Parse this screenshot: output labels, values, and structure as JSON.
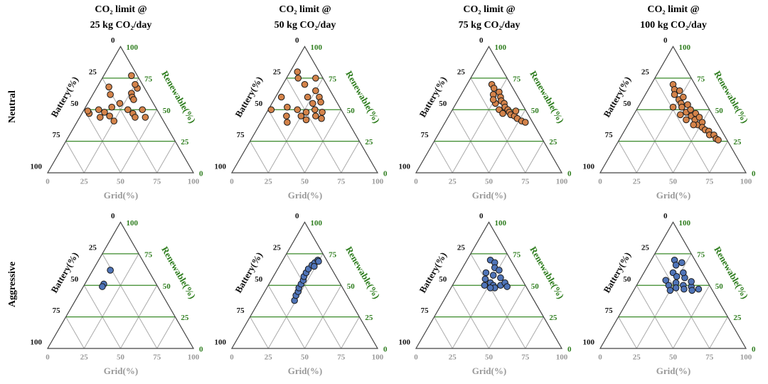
{
  "row_labels": [
    "Neutral",
    "Aggressive"
  ],
  "chart_data": [
    {
      "type": "ternary",
      "title": [
        "CO₂ limit @",
        "25 kg CO₂/day"
      ],
      "color": "#d4834a",
      "grid_label": "Grid(%)",
      "battery_label": "Battery(%)",
      "renewable_label": "Renewable(%)",
      "grid_ticks": [
        0,
        25,
        50,
        75,
        100
      ],
      "battery_ticks": [
        0,
        25,
        50,
        75,
        100
      ],
      "renewable_ticks": [
        0,
        25,
        50,
        75,
        100
      ],
      "points": {
        "grid": [
          5,
          19,
          26,
          45,
          25,
          10,
          15,
          20,
          30,
          35,
          22,
          28,
          28,
          8,
          12,
          18,
          38,
          40,
          25,
          30,
          3,
          14
        ],
        "battery": [
          48,
          4,
          11,
          11,
          34,
          40,
          37,
          35,
          20,
          18,
          23,
          12,
          5,
          24,
          26,
          30,
          18,
          10,
          5,
          12,
          48,
          42
        ],
        "renewable": [
          47,
          77,
          63,
          44,
          41,
          50,
          48,
          45,
          50,
          47,
          55,
          60,
          67,
          68,
          62,
          52,
          44,
          50,
          70,
          58,
          49,
          44
        ]
      }
    },
    {
      "type": "ternary",
      "title": [
        "CO₂ limit @",
        "50 kg CO₂/day"
      ],
      "color": "#d4834a",
      "grid_label": "Grid(%)",
      "battery_label": "Battery(%)",
      "renewable_label": "Renewable(%)",
      "grid_ticks": [
        0,
        25,
        50,
        75,
        100
      ],
      "battery_ticks": [
        0,
        25,
        50,
        75,
        100
      ],
      "renewable_ticks": [
        0,
        25,
        50,
        75,
        100
      ],
      "points": {
        "grid": [
          5,
          8,
          4,
          2,
          15,
          20,
          25,
          30,
          35,
          40,
          22,
          28,
          32,
          18,
          25,
          30,
          12,
          38,
          20,
          27,
          33,
          15
        ],
        "battery": [
          15,
          17,
          36,
          48,
          15,
          30,
          30,
          28,
          20,
          17,
          18,
          17,
          18,
          42,
          10,
          10,
          36,
          14,
          5,
          25,
          11,
          40
        ],
        "renewable": [
          80,
          75,
          60,
          50,
          70,
          50,
          45,
          42,
          45,
          43,
          60,
          55,
          50,
          40,
          65,
          60,
          52,
          48,
          75,
          48,
          56,
          45
        ]
      }
    },
    {
      "type": "ternary",
      "title": [
        "CO₂ limit @",
        "75 kg CO₂/day"
      ],
      "color": "#d4834a",
      "grid_label": "Grid(%)",
      "battery_label": "Battery(%)",
      "renewable_label": "Renewable(%)",
      "grid_ticks": [
        0,
        25,
        50,
        75,
        100
      ],
      "battery_ticks": [
        0,
        25,
        50,
        75,
        100
      ],
      "renewable_ticks": [
        0,
        25,
        50,
        75,
        100
      ],
      "points": {
        "grid": [
          17,
          20,
          22,
          25,
          28,
          30,
          27,
          33,
          35,
          32,
          38,
          40,
          42,
          45,
          48,
          52,
          55,
          36,
          24,
          44
        ],
        "battery": [
          13,
          13,
          16,
          11,
          12,
          13,
          18,
          12,
          13,
          18,
          12,
          12,
          12,
          10,
          9,
          7,
          5,
          17,
          18,
          7
        ],
        "renewable": [
          70,
          67,
          62,
          64,
          60,
          57,
          55,
          55,
          52,
          50,
          50,
          48,
          46,
          45,
          43,
          41,
          40,
          47,
          58,
          49
        ]
      }
    },
    {
      "type": "ternary",
      "title": [
        "CO₂ limit @",
        "100 kg CO₂/day"
      ],
      "color": "#d4834a",
      "grid_label": "Grid(%)",
      "battery_label": "Battery(%)",
      "renewable_label": "Renewable(%)",
      "grid_ticks": [
        0,
        25,
        50,
        75,
        100
      ],
      "battery_ticks": [
        0,
        25,
        50,
        75,
        100
      ],
      "renewable_ticks": [
        0,
        25,
        50,
        75,
        100
      ],
      "points": {
        "grid": [
          15,
          18,
          20,
          22,
          25,
          27,
          28,
          30,
          33,
          35,
          37,
          40,
          42,
          44,
          46,
          48,
          50,
          52,
          55,
          58,
          60,
          63,
          66,
          68,
          24,
          32,
          38,
          45
        ],
        "battery": [
          15,
          16,
          18,
          13,
          17,
          13,
          17,
          18,
          13,
          17,
          13,
          15,
          11,
          14,
          10,
          14,
          10,
          12,
          11,
          9,
          10,
          7,
          7,
          6,
          24,
          22,
          20,
          17
        ],
        "renewable": [
          70,
          66,
          62,
          65,
          58,
          60,
          55,
          52,
          54,
          48,
          50,
          45,
          47,
          42,
          44,
          38,
          40,
          36,
          34,
          33,
          30,
          30,
          27,
          26,
          52,
          46,
          42,
          38
        ]
      }
    },
    {
      "type": "ternary",
      "color": "#4f74b8",
      "grid_label": "Grid(%)",
      "battery_label": "Battery(%)",
      "renewable_label": "Renewable(%)",
      "grid_ticks": [
        0,
        25,
        50,
        75,
        100
      ],
      "battery_ticks": [
        0,
        25,
        50,
        75,
        100
      ],
      "renewable_ticks": [
        0,
        25,
        50,
        75,
        100
      ],
      "points": {
        "grid": [
          12,
          13,
          13
        ],
        "battery": [
          26,
          36,
          38
        ],
        "renewable": [
          62,
          51,
          49
        ]
      }
    },
    {
      "type": "ternary",
      "color": "#4f74b8",
      "grid_label": "Grid(%)",
      "battery_label": "Battery(%)",
      "renewable_label": "Renewable(%)",
      "grid_ticks": [
        0,
        25,
        50,
        75,
        100
      ],
      "battery_ticks": [
        0,
        25,
        50,
        75,
        100
      ],
      "renewable_ticks": [
        0,
        25,
        50,
        75,
        100
      ],
      "points": {
        "grid": [
          24,
          23,
          23,
          22,
          22,
          22,
          21,
          21,
          21,
          22,
          23,
          24,
          25,
          24
        ],
        "battery": [
          38,
          35,
          32,
          30,
          27,
          24,
          22,
          19,
          16,
          12,
          9,
          6,
          6,
          11
        ],
        "renewable": [
          38,
          42,
          45,
          48,
          51,
          54,
          57,
          60,
          63,
          66,
          68,
          70,
          69,
          65
        ]
      }
    },
    {
      "type": "ternary",
      "color": "#4f74b8",
      "grid_label": "Grid(%)",
      "battery_label": "Battery(%)",
      "renewable_label": "Renewable(%)",
      "grid_ticks": [
        0,
        25,
        50,
        75,
        100
      ],
      "battery_ticks": [
        0,
        25,
        50,
        75,
        100
      ],
      "renewable_ticks": [
        0,
        25,
        50,
        75,
        100
      ],
      "points": {
        "grid": [
          16,
          20,
          22,
          18,
          24,
          20,
          25,
          28,
          30,
          33,
          35,
          38,
          26,
          30,
          22,
          27
        ],
        "battery": [
          14,
          12,
          14,
          22,
          18,
          25,
          23,
          22,
          22,
          17,
          13,
          13,
          12,
          14,
          28,
          25
        ],
        "renewable": [
          70,
          68,
          64,
          60,
          58,
          55,
          52,
          50,
          48,
          50,
          52,
          49,
          62,
          56,
          50,
          48
        ]
      }
    },
    {
      "type": "ternary",
      "color": "#4f74b8",
      "grid_label": "Grid(%)",
      "battery_label": "Battery(%)",
      "renewable_label": "Renewable(%)",
      "grid_ticks": [
        0,
        25,
        50,
        75,
        100
      ],
      "battery_ticks": [
        0,
        25,
        50,
        75,
        100
      ],
      "renewable_ticks": [
        0,
        25,
        50,
        75,
        100
      ],
      "points": {
        "grid": [
          16,
          19,
          22,
          20,
          24,
          18,
          22,
          26,
          28,
          32,
          34,
          38,
          40,
          44,
          30,
          27,
          36,
          25
        ],
        "battery": [
          14,
          15,
          10,
          20,
          19,
          28,
          28,
          22,
          24,
          18,
          19,
          13,
          14,
          9,
          14,
          13,
          11,
          29
        ],
        "renewable": [
          70,
          66,
          68,
          60,
          57,
          54,
          50,
          52,
          48,
          50,
          47,
          49,
          46,
          47,
          56,
          60,
          53,
          46
        ]
      }
    }
  ]
}
